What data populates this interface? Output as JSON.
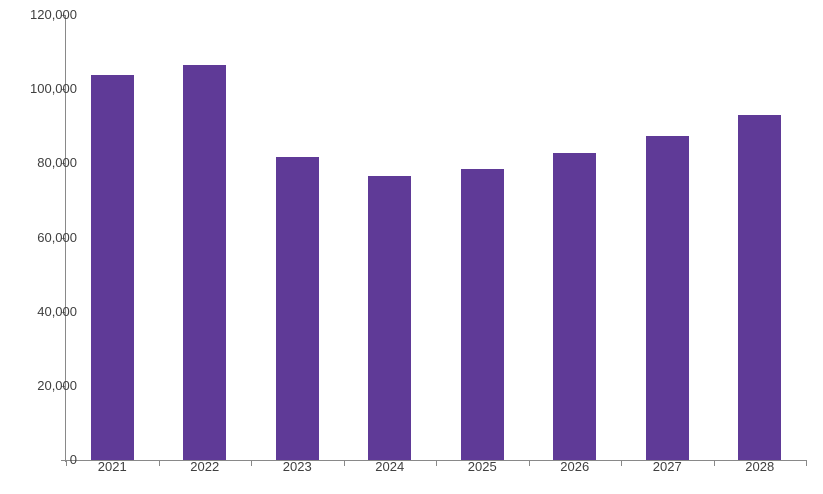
{
  "chart_data": {
    "type": "bar",
    "title": "",
    "xlabel": "",
    "ylabel": "",
    "categories": [
      "2021",
      "2022",
      "2023",
      "2024",
      "2025",
      "2026",
      "2027",
      "2028"
    ],
    "values": [
      103700,
      106500,
      81600,
      76500,
      78500,
      82800,
      87300,
      93000
    ],
    "series_name": "",
    "ylim": [
      0,
      120000
    ],
    "y_ticks": [
      0,
      20000,
      40000,
      60000,
      80000,
      100000,
      120000
    ],
    "y_tick_labels": [
      "0",
      "20,000",
      "40,000",
      "60,000",
      "80,000",
      "100,000",
      "120,000"
    ],
    "grid": false,
    "legend_position": "none",
    "bar_color": "#5F3A97",
    "axis_color": "#898989",
    "label_color": "#404040",
    "background_color": "#FFFFFF"
  }
}
